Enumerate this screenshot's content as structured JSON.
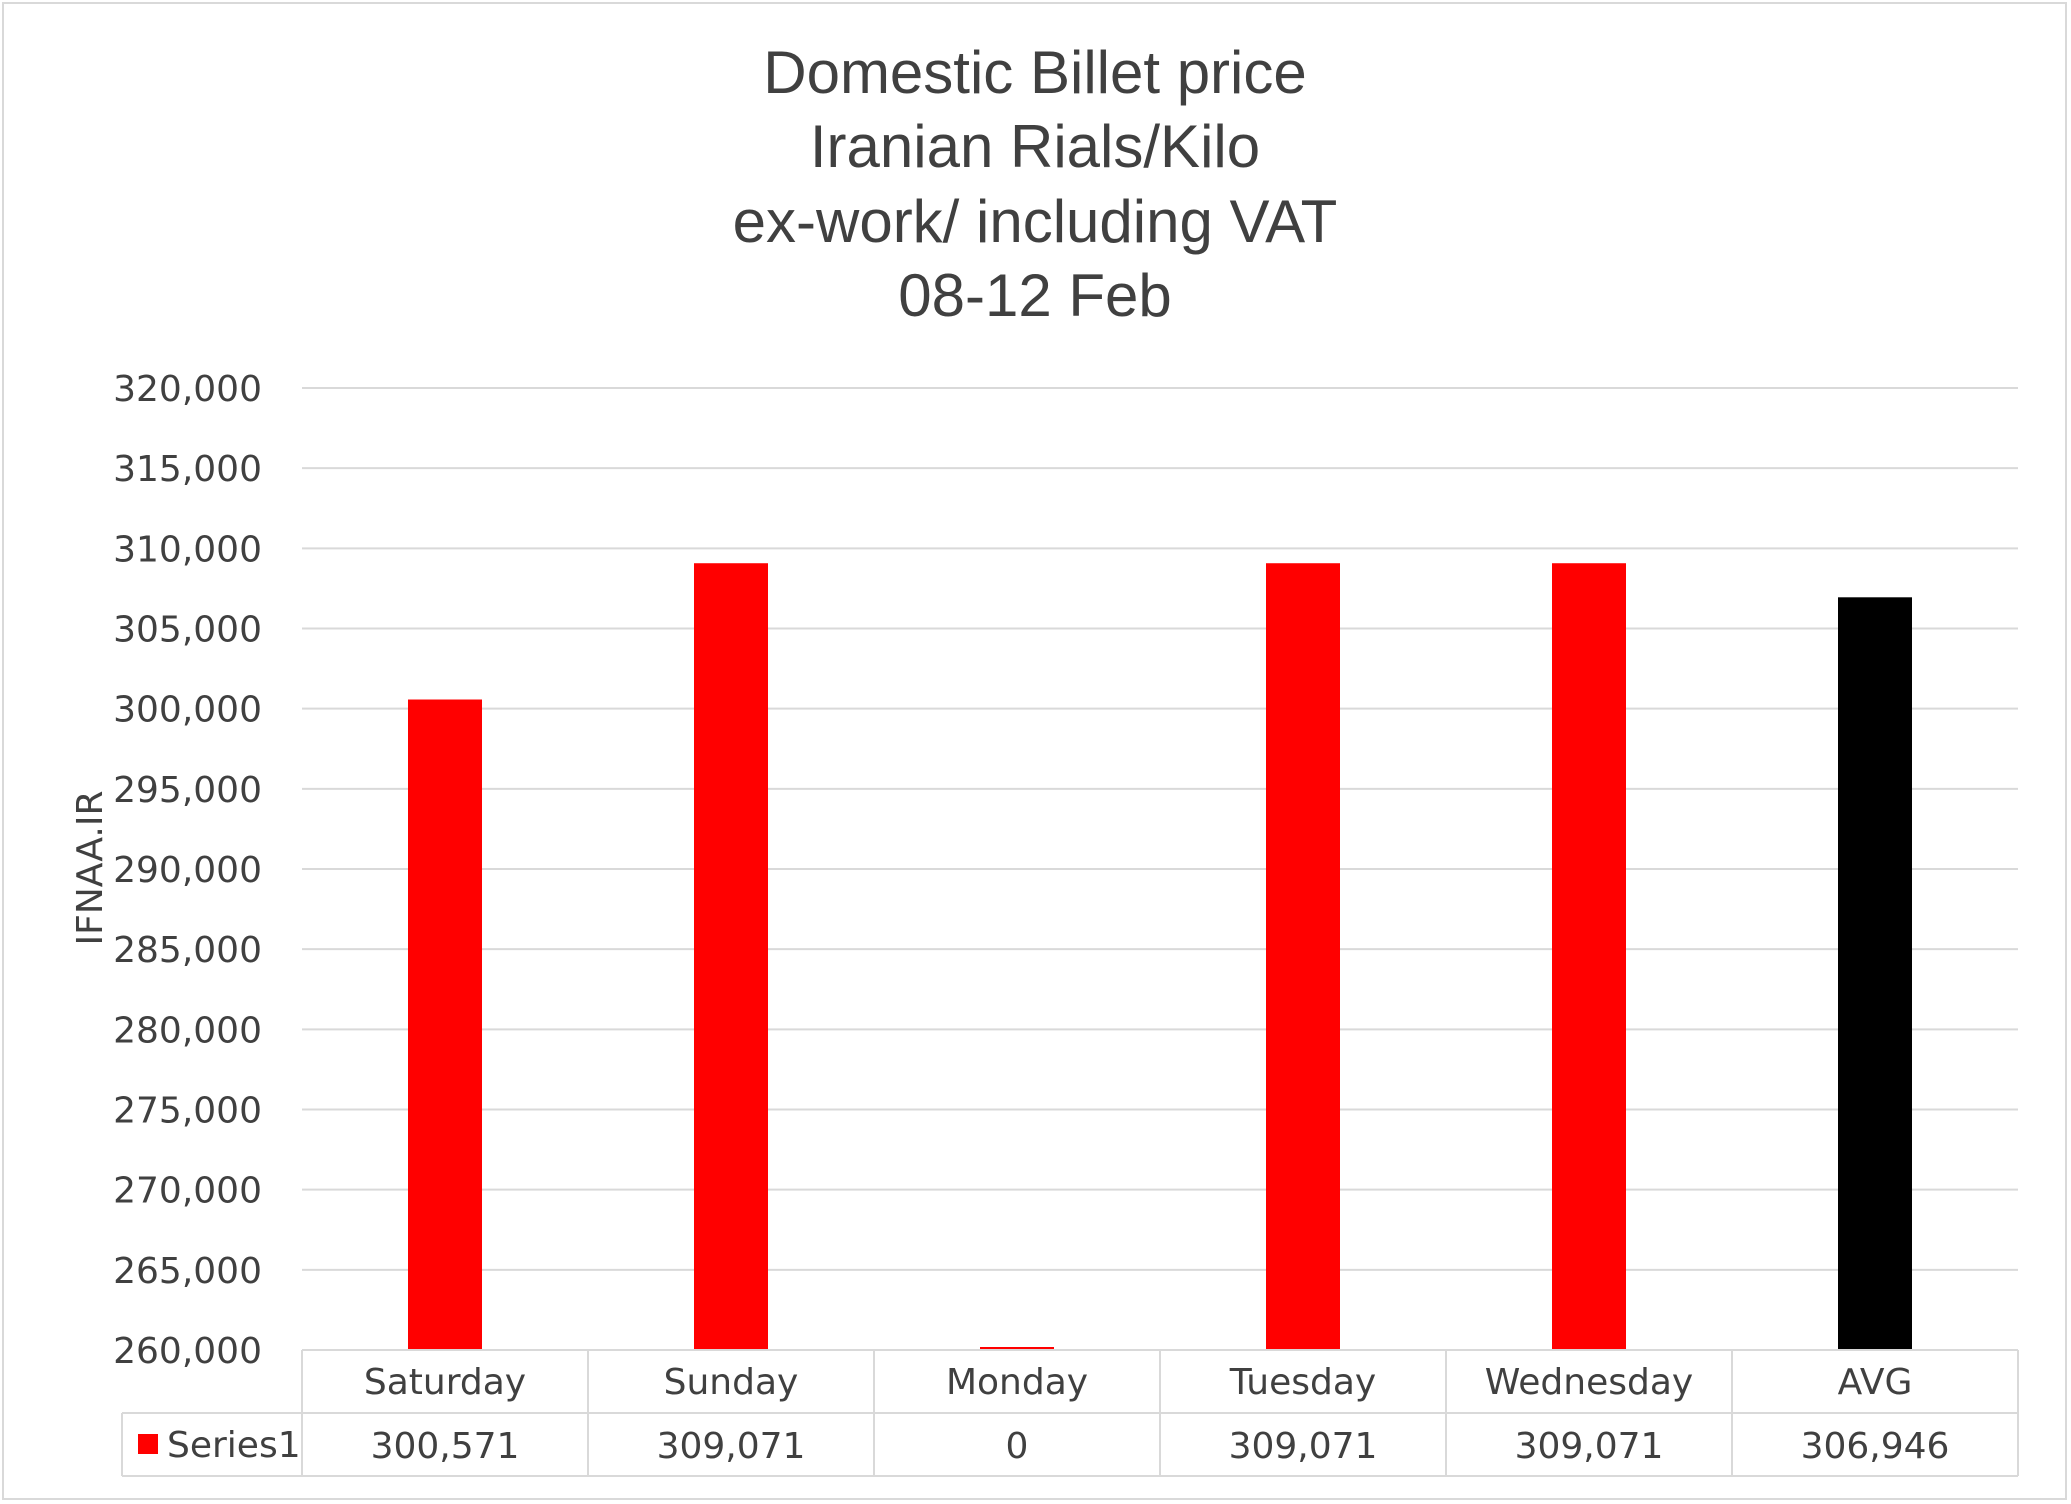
{
  "chart_data": {
    "type": "bar",
    "title_lines": [
      "Domestic Billet price",
      "Iranian Rials/Kilo",
      "ex-work/ including VAT",
      "08-12 Feb"
    ],
    "ylabel": "IFNAA.IR",
    "xlabel": "",
    "ylim": [
      260000,
      320000
    ],
    "y_ticks": [
      260000,
      265000,
      270000,
      275000,
      280000,
      285000,
      290000,
      295000,
      300000,
      305000,
      310000,
      315000,
      320000
    ],
    "y_tick_labels": [
      "260,000",
      "265,000",
      "270,000",
      "275,000",
      "280,000",
      "285,000",
      "290,000",
      "295,000",
      "300,000",
      "305,000",
      "310,000",
      "315,000",
      "320,000"
    ],
    "grid": true,
    "categories": [
      "Saturday",
      "Sunday",
      "Monday",
      "Tuesday",
      "Wednesday",
      "AVG"
    ],
    "series": [
      {
        "name": "Series1",
        "values": [
          300571,
          309071,
          0,
          309071,
          309071,
          306946
        ],
        "value_labels": [
          "300,571",
          "309,071",
          "0",
          "309,071",
          "309,071",
          "306,946"
        ],
        "color": "#ff0000",
        "point_colors": [
          "#ff0000",
          "#ff0000",
          "#ff0000",
          "#ff0000",
          "#ff0000",
          "#000000"
        ]
      }
    ],
    "data_table": true
  }
}
